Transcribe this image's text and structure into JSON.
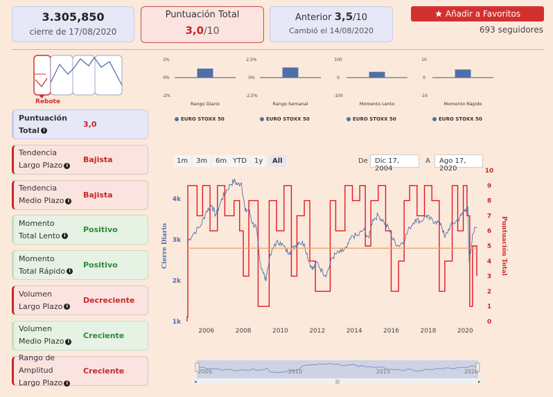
{
  "price_card": {
    "value": "3.305,850",
    "caption": "cierre de 17/08/2020"
  },
  "score_card": {
    "label": "Puntuación Total",
    "value": "3,0",
    "suffix": "/10"
  },
  "previous_card": {
    "label": "Anterior",
    "value": "3,5",
    "suffix": "/10",
    "caption": "Cambió el 14/08/2020"
  },
  "favorites": {
    "label": "Añadir a Favoritos",
    "followers": "693 seguidores"
  },
  "pattern": {
    "label": "Rebote"
  },
  "signals": [
    {
      "line1": "Puntuación",
      "line2": "Total",
      "value": "3,0",
      "tone": "blue",
      "value_tone": "red"
    },
    {
      "line1": "Tendencia",
      "line2": "Largo Plazo",
      "value": "Bajista",
      "tone": "red",
      "value_tone": "red"
    },
    {
      "line1": "Tendencia",
      "line2": "Medio Plazo",
      "value": "Bajista",
      "tone": "red",
      "value_tone": "red"
    },
    {
      "line1": "Momento",
      "line2": "Total Lento",
      "value": "Positivo",
      "tone": "green",
      "value_tone": "green"
    },
    {
      "line1": "Momento",
      "line2": "Total Rápido",
      "value": "Positivo",
      "tone": "green",
      "value_tone": "green"
    },
    {
      "line1": "Volumen",
      "line2": "Largo Plazo",
      "value": "Decreciente",
      "tone": "red",
      "value_tone": "red"
    },
    {
      "line1": "Volumen",
      "line2": "Medio Plazo",
      "value": "Creciente",
      "tone": "green",
      "value_tone": "green"
    },
    {
      "line1": "Rango de Amplitud",
      "line2": "Largo Plazo",
      "value": "Creciente",
      "tone": "red",
      "value_tone": "red"
    }
  ],
  "mini_legend": "EURO STOXX 50",
  "chart_data": [
    {
      "type": "bar",
      "title": "Rango Diario",
      "categories": [
        "Rango Diario"
      ],
      "values": [
        1.0
      ],
      "y_ticks": [
        "2%",
        "0%",
        "-2%"
      ],
      "ylim": [
        -2,
        2
      ],
      "legend": "EURO STOXX 50"
    },
    {
      "type": "bar",
      "title": "Rango Semanal",
      "categories": [
        "Rango Semanal"
      ],
      "values": [
        1.4
      ],
      "y_ticks": [
        "2,5%",
        "0%",
        "-2,5%"
      ],
      "ylim": [
        -2.5,
        2.5
      ],
      "legend": "EURO STOXX 50"
    },
    {
      "type": "bar",
      "title": "Momento Lento",
      "categories": [
        "Momento Lento"
      ],
      "values": [
        32
      ],
      "y_ticks": [
        "100",
        "0",
        "-100"
      ],
      "ylim": [
        -100,
        100
      ],
      "legend": "EURO STOXX 50"
    },
    {
      "type": "bar",
      "title": "Momento Rápido",
      "categories": [
        "Momento Rápido"
      ],
      "values": [
        4.5
      ],
      "y_ticks": [
        "10",
        "0",
        "-10"
      ],
      "ylim": [
        -10,
        10
      ],
      "legend": "EURO STOXX 50"
    },
    {
      "type": "line",
      "title": "",
      "ylabel": "Cierre Diario",
      "y2label": "Puntuación Total",
      "y_ticks": [
        "1k",
        "2k",
        "3k",
        "4k"
      ],
      "y2_ticks": [
        "0",
        "1",
        "2",
        "3",
        "4",
        "5",
        "6",
        "7",
        "8",
        "9",
        "10"
      ],
      "x_ticks": [
        "2006",
        "2008",
        "2010",
        "2012",
        "2014",
        "2016",
        "2018",
        "2020"
      ],
      "ylim": [
        1000,
        4700
      ],
      "y2lim": [
        0,
        10
      ],
      "reference_line": 4.85,
      "series": [
        {
          "name": "Cierre Diario",
          "color": "#4f6fa8",
          "x": [
            2004.96,
            2005.3,
            2005.7,
            2006.0,
            2006.3,
            2006.5,
            2006.8,
            2007.0,
            2007.3,
            2007.5,
            2007.7,
            2007.9,
            2008.1,
            2008.3,
            2008.5,
            2008.7,
            2008.9,
            2009.1,
            2009.2,
            2009.4,
            2009.7,
            2010.0,
            2010.3,
            2010.5,
            2010.8,
            2011.0,
            2011.3,
            2011.6,
            2011.8,
            2012.0,
            2012.3,
            2012.5,
            2012.8,
            2013.0,
            2013.3,
            2013.6,
            2013.9,
            2014.2,
            2014.5,
            2014.8,
            2015.0,
            2015.3,
            2015.6,
            2015.9,
            2016.1,
            2016.4,
            2016.7,
            2017.0,
            2017.3,
            2017.6,
            2017.9,
            2018.1,
            2018.4,
            2018.7,
            2018.9,
            2019.2,
            2019.5,
            2019.8,
            2020.0,
            2020.15,
            2020.22,
            2020.4,
            2020.63
          ],
          "values": [
            2950,
            3150,
            3350,
            3700,
            3850,
            3600,
            3950,
            4150,
            4350,
            4450,
            4350,
            4400,
            3700,
            3750,
            3400,
            3300,
            2450,
            2200,
            2000,
            2500,
            2900,
            2950,
            2750,
            2700,
            2850,
            2950,
            2900,
            2400,
            2300,
            2450,
            2200,
            2150,
            2550,
            2650,
            2700,
            2800,
            3100,
            3100,
            3250,
            3050,
            3500,
            3600,
            3450,
            3250,
            3000,
            2850,
            3000,
            3300,
            3500,
            3450,
            3600,
            3500,
            3450,
            3400,
            3050,
            3350,
            3450,
            3600,
            3750,
            3800,
            2450,
            3150,
            3306
          ]
        },
        {
          "name": "Puntuación Total",
          "color": "#e0161e",
          "x": [
            2004.96,
            2005.0,
            2005.5,
            2005.8,
            2006.2,
            2006.6,
            2007.0,
            2007.5,
            2007.8,
            2008.0,
            2008.3,
            2008.8,
            2009.0,
            2009.4,
            2009.8,
            2010.2,
            2010.6,
            2010.9,
            2011.3,
            2011.6,
            2011.9,
            2012.3,
            2012.7,
            2013.0,
            2013.5,
            2013.9,
            2014.3,
            2014.6,
            2014.9,
            2015.3,
            2015.7,
            2016.0,
            2016.4,
            2016.7,
            2017.0,
            2017.4,
            2017.8,
            2018.2,
            2018.6,
            2018.9,
            2019.3,
            2019.6,
            2019.9,
            2020.1,
            2020.25,
            2020.4,
            2020.63
          ],
          "values": [
            0.3,
            9,
            7,
            9,
            6,
            9,
            7,
            8,
            6,
            3,
            8,
            1,
            1,
            8,
            6,
            9,
            3,
            7,
            8,
            4,
            2,
            2,
            8,
            6,
            9,
            8,
            9,
            5,
            8,
            9,
            6,
            2,
            4,
            8,
            9,
            7,
            9,
            8,
            2,
            4,
            9,
            6,
            9,
            7,
            1,
            5,
            3
          ]
        }
      ]
    }
  ],
  "range_buttons": [
    "1m",
    "3m",
    "6m",
    "YTD",
    "1y",
    "All"
  ],
  "date_range": {
    "from_label": "De",
    "from": "Dic 17, 2004",
    "to_label": "A",
    "to": "Ago 17, 2020"
  },
  "navigator": {
    "x_ticks": [
      "2005",
      "2010",
      "2015",
      "2020"
    ]
  },
  "colors": {
    "accent_red": "#d32f2f",
    "line_blue": "#4f6fa8",
    "line_red": "#e0161e",
    "reference": "#e8a060"
  }
}
